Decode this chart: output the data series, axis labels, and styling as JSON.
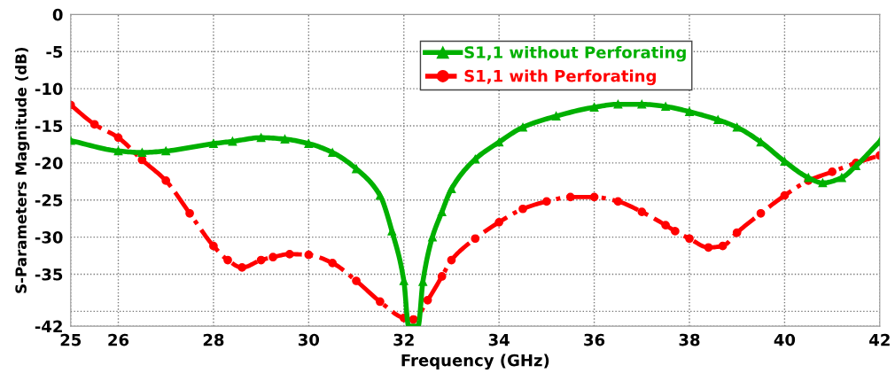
{
  "chart_data": {
    "type": "line",
    "xlabel": "Frequency (GHz)",
    "ylabel": "S-Parameters Magnitude (dB)",
    "xlim": [
      25,
      42
    ],
    "xticks": [
      25,
      26,
      28,
      30,
      32,
      34,
      36,
      38,
      40,
      42
    ],
    "ylim": [
      -42,
      0
    ],
    "yticks": [
      0,
      -5,
      -10,
      -15,
      -20,
      -25,
      -30,
      -35,
      {
        "value": -40,
        "label": null
      },
      -42
    ],
    "grid": true,
    "legend": "top",
    "series": [
      {
        "name": "S1,1 without Perforating",
        "color": "#00b000",
        "marker": "triangle",
        "line_style": "solid",
        "x": [
          25,
          26,
          26.5,
          27,
          28,
          28.4,
          29,
          29.5,
          30,
          30.5,
          31,
          31.5,
          31.75,
          32,
          32.1,
          32.3,
          32.4,
          32.6,
          32.8,
          33,
          33.5,
          34,
          34.5,
          35.2,
          36,
          36.5,
          37,
          37.5,
          38,
          38.6,
          39,
          39.5,
          40,
          40.5,
          40.8,
          41.2,
          41.5,
          42
        ],
        "values": [
          -17,
          -18.4,
          -18.6,
          -18.4,
          -17.4,
          -17.1,
          -16.6,
          -16.8,
          -17.4,
          -18.6,
          -20.8,
          -24.4,
          -29.2,
          -35.9,
          -42,
          -42,
          -36,
          -30,
          -26.6,
          -23.5,
          -19.5,
          -17.2,
          -15.2,
          -13.7,
          -12.5,
          -12.1,
          -12.1,
          -12.4,
          -13.1,
          -14.2,
          -15.2,
          -17.2,
          -19.8,
          -22,
          -22.7,
          -22,
          -20.4,
          -17.1
        ]
      },
      {
        "name": "S1,1 with Perforating",
        "color": "#ff0000",
        "marker": "circle",
        "line_style": "dashdot",
        "x": [
          25,
          25.5,
          26,
          26.5,
          27,
          27.5,
          28,
          28.3,
          28.6,
          29,
          29.25,
          29.6,
          30,
          30.5,
          31,
          31.5,
          32,
          32.2,
          32.5,
          32.8,
          33,
          33.5,
          34,
          34.5,
          35,
          35.5,
          36,
          36.5,
          37,
          37.5,
          37.7,
          38,
          38.4,
          38.7,
          39,
          39.5,
          40,
          40.5,
          41,
          41.5,
          42
        ],
        "values": [
          -12.2,
          -14.8,
          -16.6,
          -19.6,
          -22.4,
          -26.8,
          -31.2,
          -33.1,
          -34.1,
          -33.1,
          -32.7,
          -32.3,
          -32.4,
          -33.5,
          -35.9,
          -38.7,
          -40.9,
          -41.1,
          -38.5,
          -35.3,
          -33.1,
          -30.2,
          -28,
          -26.2,
          -25.2,
          -24.6,
          -24.6,
          -25.2,
          -26.6,
          -28.4,
          -29.2,
          -30.2,
          -31.4,
          -31.2,
          -29.4,
          -26.8,
          -24.4,
          -22.4,
          -21.2,
          -20,
          -19
        ]
      }
    ]
  }
}
